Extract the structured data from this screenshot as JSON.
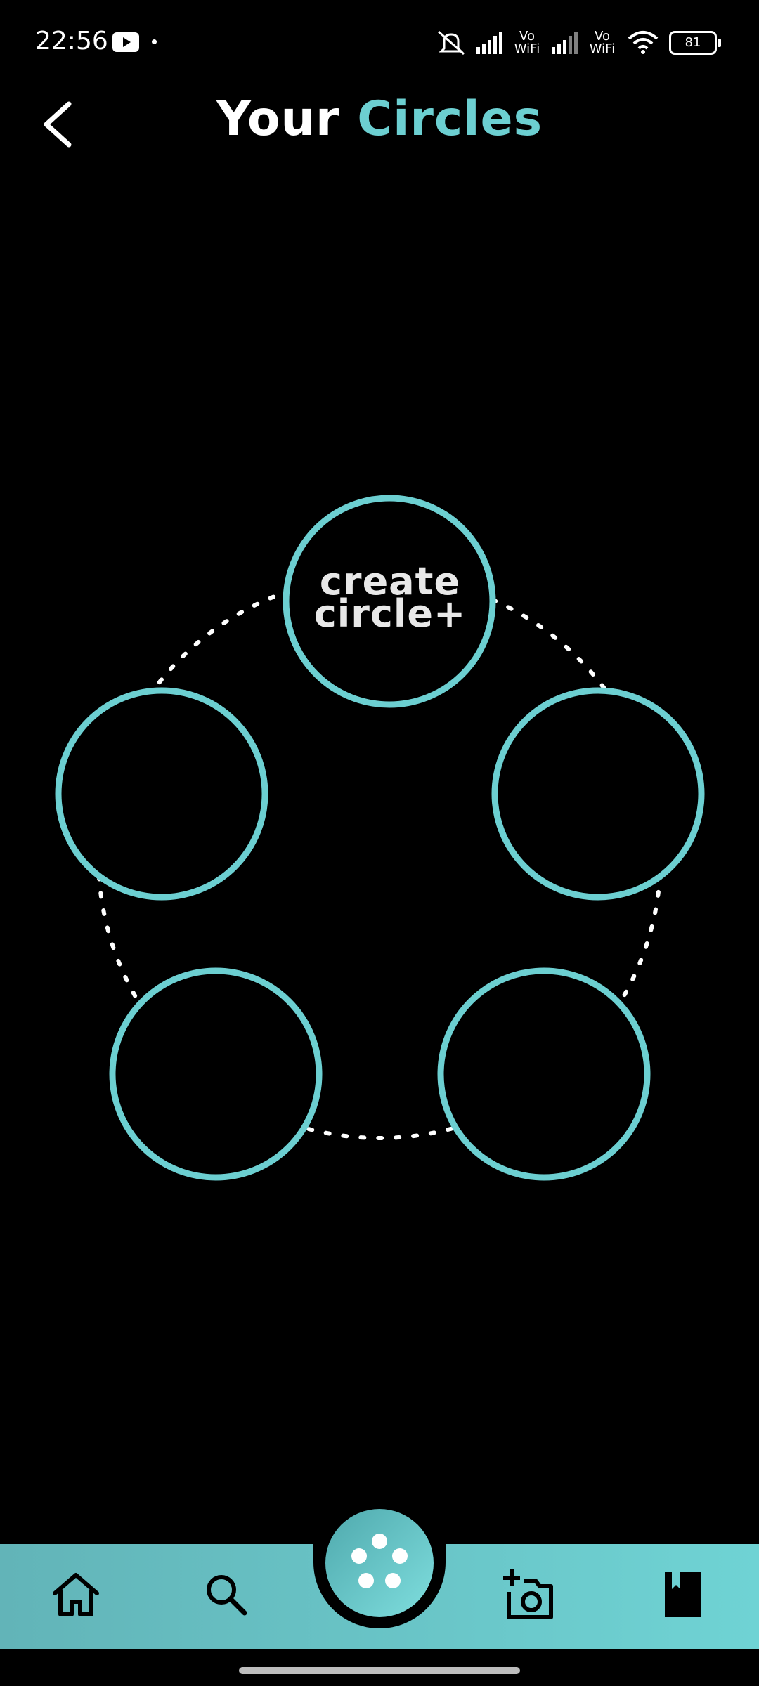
{
  "status_bar": {
    "time": "22:56",
    "battery": "81",
    "vowifi_1": [
      "Vo",
      "WiFi"
    ],
    "vowifi_2": [
      "Vo",
      "WiFi"
    ],
    "icons": [
      "youtube-icon",
      "notification-dot-icon",
      "mute-icon",
      "signal-icon",
      "signal-icon",
      "wifi-icon",
      "battery-icon"
    ]
  },
  "header": {
    "title_part1": "Your",
    "title_part2": "Circles",
    "back_icon": "chevron-left-icon"
  },
  "circles": {
    "create_line1": "create",
    "create_line2": "circle+",
    "slot_count": 5
  },
  "colors": {
    "accent": "#6ccfd1",
    "background": "#000000",
    "nav_gradient_start": "#62b4b8",
    "nav_gradient_end": "#6fd3d4"
  },
  "bottom_nav": {
    "items": [
      "home-icon",
      "search-icon",
      "circles-icon",
      "add-photo-icon",
      "bookmark-icon"
    ],
    "active": "circles-icon"
  }
}
